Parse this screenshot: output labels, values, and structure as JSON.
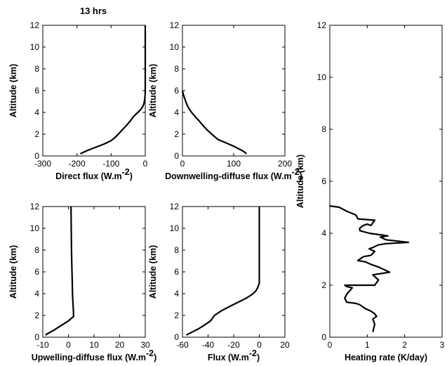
{
  "figure": {
    "title": "13 hrs"
  },
  "chart_data": [
    {
      "id": "direct",
      "type": "line",
      "xlabel": "Direct flux (W.m",
      "xlabel_sup": "-2",
      "xlabel_tail": ")",
      "ylabel": "Altitude (km)",
      "xlim": [
        -300,
        0
      ],
      "ylim": [
        0,
        12
      ],
      "xticks": [
        -300,
        -200,
        -100,
        0
      ],
      "yticks": [
        0,
        2,
        4,
        6,
        8,
        10,
        12
      ],
      "series": [
        {
          "x": [
            -190,
            -170,
            -145,
            -120,
            -100,
            -85,
            -70,
            -55,
            -42,
            -35,
            -25,
            -15,
            -8,
            -4,
            -2,
            -1,
            -0.5,
            0,
            0
          ],
          "y": [
            0.2,
            0.5,
            0.8,
            1.1,
            1.4,
            1.8,
            2.3,
            2.8,
            3.3,
            3.6,
            3.9,
            4.2,
            4.5,
            4.8,
            5.1,
            5.4,
            5.6,
            6,
            12
          ]
        }
      ]
    },
    {
      "id": "downwelling",
      "type": "line",
      "xlabel": "Downwelling-diffuse flux (W.m",
      "xlabel_sup": "-2",
      "xlabel_tail": ")",
      "ylabel": "Altitude (km)",
      "xlim": [
        0,
        200
      ],
      "ylim": [
        0,
        12
      ],
      "xticks": [
        0,
        100,
        200
      ],
      "yticks": [
        0,
        2,
        4,
        6,
        8,
        10,
        12
      ],
      "series": [
        {
          "x": [
            125,
            120,
            112,
            100,
            85,
            70,
            62,
            55,
            48,
            40,
            33,
            25,
            18,
            12,
            8,
            5,
            2,
            0
          ],
          "y": [
            0.2,
            0.4,
            0.6,
            0.9,
            1.2,
            1.5,
            1.8,
            2.1,
            2.4,
            2.8,
            3.2,
            3.6,
            4,
            4.4,
            4.8,
            5.2,
            5.6,
            6
          ]
        }
      ]
    },
    {
      "id": "upwelling",
      "type": "line",
      "xlabel": "Upwelling-diffuse flux (W.m",
      "xlabel_sup": "-2",
      "xlabel_tail": ")",
      "ylabel": "Altitude (km)",
      "xlim": [
        -10,
        30
      ],
      "ylim": [
        0,
        12
      ],
      "xticks": [
        -10,
        0,
        10,
        20,
        30
      ],
      "yticks": [
        0,
        2,
        4,
        6,
        8,
        10,
        12
      ],
      "series": [
        {
          "x": [
            -9,
            -8,
            -6,
            -4,
            -2,
            0,
            1,
            2,
            2,
            1.8,
            1.6,
            1.5,
            1.4,
            1.3,
            1.2,
            1.1,
            1
          ],
          "y": [
            0.2,
            0.35,
            0.6,
            0.9,
            1.2,
            1.5,
            1.7,
            1.9,
            2.2,
            3,
            4,
            5,
            6,
            7,
            8,
            10,
            12
          ]
        }
      ]
    },
    {
      "id": "net",
      "type": "line",
      "xlabel": "Flux (W.m",
      "xlabel_sup": "-2",
      "xlabel_tail": ")",
      "ylabel": "Altitude (km)",
      "xlim": [
        -60,
        20
      ],
      "ylim": [
        0,
        12
      ],
      "xticks": [
        -60,
        -40,
        -20,
        0,
        20
      ],
      "yticks": [
        0,
        2,
        4,
        6,
        8,
        10,
        12
      ],
      "series": [
        {
          "x": [
            -57,
            -52,
            -47,
            -43,
            -38,
            -35,
            -30,
            -22,
            -15,
            -10,
            -6,
            -3,
            -1.5,
            -0.5,
            0,
            0,
            0
          ],
          "y": [
            0.2,
            0.5,
            0.8,
            1.1,
            1.5,
            2,
            2.4,
            2.9,
            3.3,
            3.6,
            3.9,
            4.2,
            4.5,
            4.8,
            5,
            8,
            12
          ]
        }
      ]
    },
    {
      "id": "heating",
      "type": "line",
      "xlabel": "Heating rate (K/day)",
      "ylabel": "Altitude (km)",
      "xlim": [
        0,
        3
      ],
      "ylim": [
        0,
        12
      ],
      "xticks": [
        0,
        1,
        2,
        3
      ],
      "yticks": [
        0,
        2,
        4,
        6,
        8,
        10,
        12
      ],
      "series": [
        {
          "x": [
            1.15,
            1.2,
            1.15,
            1.25,
            1.2,
            1.1,
            0.95,
            0.85,
            0.8,
            0.7,
            0.45,
            0.4,
            0.45,
            0.6,
            0.45,
            0.4,
            1.2,
            1.3,
            1.15,
            1.6,
            1.3,
            1.1,
            0.95,
            0.75,
            0.9,
            1.1,
            1.2,
            1.05,
            1.15,
            1.3,
            1.5,
            2.1,
            1.5,
            1.35,
            1.55,
            1.3,
            1.05,
            0.8,
            0.8,
            0.9,
            1.0,
            1.1,
            1.2,
            0.75,
            0.7,
            0.45,
            0.25,
            0
          ],
          "y": [
            0.2,
            0.5,
            0.7,
            0.8,
            0.9,
            1.0,
            1.1,
            1.2,
            1.25,
            1.3,
            1.35,
            1.5,
            1.65,
            1.9,
            1.95,
            2.0,
            2.0,
            2.2,
            2.4,
            2.5,
            2.7,
            2.8,
            2.9,
            2.95,
            3.1,
            3.15,
            3.3,
            3.4,
            3.45,
            3.55,
            3.6,
            3.65,
            3.75,
            3.85,
            3.9,
            3.95,
            4.0,
            4.1,
            4.2,
            4.3,
            4.35,
            4.3,
            4.5,
            4.55,
            4.7,
            4.85,
            5.0,
            5.05
          ]
        }
      ]
    }
  ]
}
